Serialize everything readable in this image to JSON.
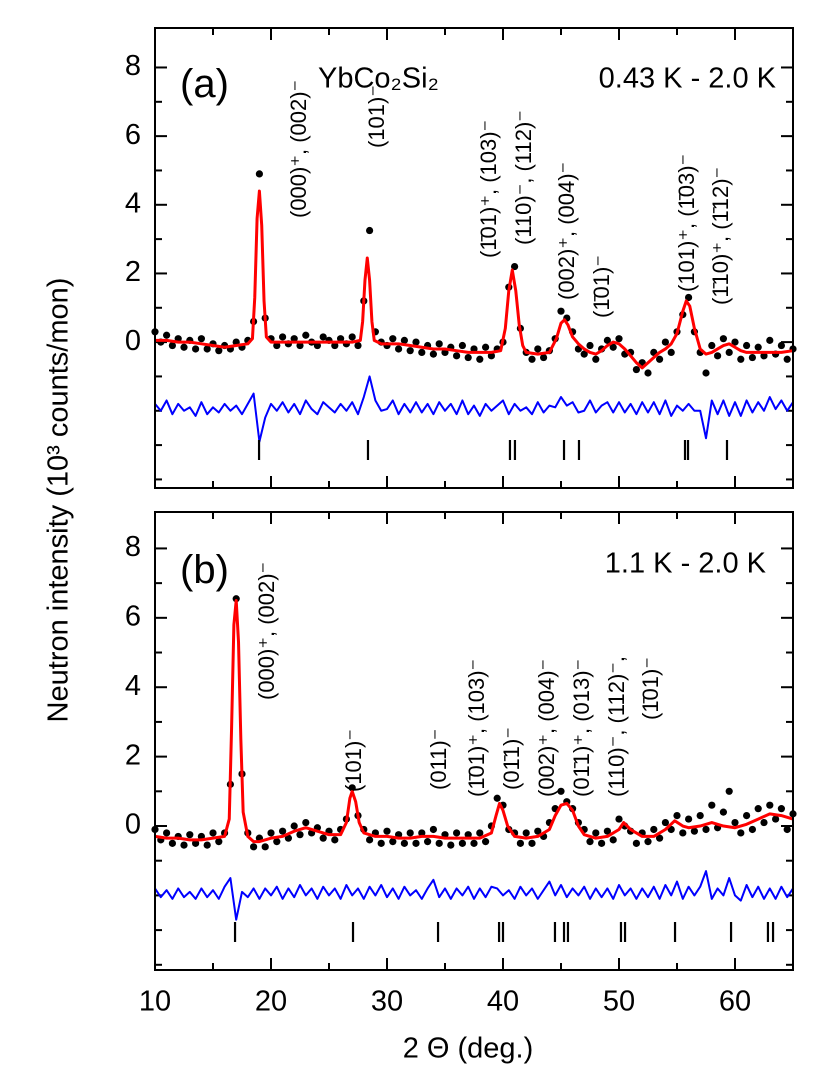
{
  "axis_titles": {
    "x": "2 Θ (deg.)",
    "y": "Neutron intensity (10³ counts/mon)"
  },
  "chart_data": [
    {
      "type": "diffraction",
      "label": "(a)",
      "compound": "YbCo₂Si₂",
      "temperature": "0.43 K - 2.0 K",
      "xlim": [
        10,
        65
      ],
      "xticks": [
        10,
        20,
        30,
        40,
        50,
        60
      ],
      "xminorticks": [
        15,
        25,
        35,
        45,
        55
      ],
      "ylim": [
        -4.25,
        9.15
      ],
      "yticks": [
        0,
        2,
        4,
        6,
        8
      ],
      "yminorticks": [
        -4,
        -3,
        -2,
        -1,
        1,
        3,
        5,
        7
      ],
      "x": [
        10,
        10.5,
        11,
        11.5,
        12,
        12.5,
        13,
        13.5,
        14,
        14.5,
        15,
        15.5,
        16,
        16.5,
        17,
        17.5,
        18,
        18.5,
        19,
        19.5,
        20,
        20.5,
        21,
        21.5,
        22,
        22.5,
        23,
        23.5,
        24,
        24.5,
        25,
        25.5,
        26,
        26.5,
        27,
        27.5,
        28,
        28.5,
        29,
        29.5,
        30,
        30.5,
        31,
        31.5,
        32,
        32.5,
        33,
        33.5,
        34,
        34.5,
        35,
        35.5,
        36,
        36.5,
        37,
        37.5,
        38,
        38.5,
        39,
        39.5,
        40,
        40.5,
        41,
        41.5,
        42,
        42.5,
        43,
        43.5,
        44,
        44.5,
        45,
        45.5,
        46,
        46.5,
        47,
        47.5,
        48,
        48.5,
        49,
        49.5,
        50,
        50.5,
        51,
        51.5,
        52,
        52.5,
        53,
        53.5,
        54,
        54.5,
        55,
        55.5,
        56,
        56.5,
        57,
        57.5,
        58,
        58.5,
        59,
        59.5,
        60,
        60.5,
        61,
        61.5,
        62,
        62.5,
        63,
        63.5,
        64,
        64.5,
        65
      ],
      "observed": {
        "color": "#000000",
        "values": [
          0.3,
          0.0,
          0.2,
          -0.1,
          0.1,
          -0.15,
          0.05,
          -0.2,
          0.1,
          -0.2,
          -0.05,
          -0.25,
          -0.1,
          -0.2,
          0.0,
          -0.15,
          0.05,
          0.6,
          4.9,
          0.7,
          0.1,
          -0.1,
          0.15,
          -0.05,
          0.1,
          -0.1,
          0.2,
          0.0,
          -0.1,
          0.15,
          0.05,
          -0.1,
          0.1,
          -0.05,
          0.15,
          -0.1,
          1.2,
          3.25,
          0.3,
          0.0,
          -0.1,
          0.1,
          -0.2,
          0.05,
          -0.25,
          0.0,
          -0.3,
          -0.1,
          -0.35,
          -0.05,
          -0.3,
          -0.15,
          -0.4,
          -0.1,
          -0.45,
          -0.2,
          -0.5,
          -0.15,
          -0.4,
          -0.2,
          0.0,
          1.6,
          2.2,
          0.4,
          -0.3,
          -0.5,
          -0.2,
          -0.45,
          -0.25,
          0.1,
          0.9,
          0.7,
          0.3,
          -0.2,
          -0.35,
          -0.1,
          -0.5,
          -0.2,
          0.05,
          -0.15,
          0.1,
          -0.35,
          -0.3,
          -0.8,
          -0.6,
          -0.9,
          -0.3,
          -0.5,
          0.0,
          -0.3,
          0.3,
          0.8,
          1.3,
          0.3,
          -0.3,
          -0.9,
          -0.1,
          -0.4,
          0.1,
          -0.3,
          0.0,
          -0.5,
          -0.1,
          -0.45,
          -0.15,
          -0.4,
          0.05,
          -0.35,
          -0.1,
          -0.5,
          -0.2
        ]
      },
      "fit": {
        "color": "#ff0000",
        "x": [
          10,
          11,
          12,
          13,
          14,
          15,
          16,
          17,
          18,
          18.4,
          18.6,
          18.8,
          19,
          19.2,
          19.4,
          19.6,
          20,
          21,
          22,
          23,
          24,
          25,
          26,
          27,
          27.7,
          27.9,
          28.1,
          28.3,
          28.5,
          28.7,
          28.9,
          29.5,
          30,
          31,
          32,
          33,
          34,
          35,
          36,
          37,
          38,
          39,
          39.8,
          40.2,
          40.5,
          40.8,
          41.1,
          41.4,
          41.7,
          42,
          43,
          44,
          44.6,
          45,
          45.3,
          45.6,
          46,
          46.5,
          47,
          47.5,
          48,
          48.5,
          49,
          49.5,
          50,
          50.5,
          51,
          51.5,
          52,
          52.5,
          53,
          53.5,
          54,
          54.5,
          55,
          55.5,
          55.8,
          56.1,
          56.5,
          57,
          57.5,
          58,
          58.5,
          59,
          59.5,
          60,
          60.5,
          61,
          62,
          63,
          64,
          65
        ],
        "values": [
          0.05,
          0.05,
          0,
          0,
          -0.05,
          -0.1,
          -0.15,
          -0.1,
          -0.05,
          0.1,
          1.3,
          3.6,
          4.4,
          3.4,
          1.2,
          0.15,
          0,
          0,
          0,
          0,
          0,
          0,
          0,
          0,
          0.05,
          0.6,
          1.8,
          2.45,
          1.8,
          0.6,
          0.05,
          -0.05,
          -0.05,
          -0.05,
          -0.1,
          -0.15,
          -0.2,
          -0.2,
          -0.25,
          -0.3,
          -0.3,
          -0.3,
          -0.25,
          0.4,
          1.5,
          2.1,
          1.5,
          0.5,
          -0.1,
          -0.3,
          -0.35,
          -0.3,
          0.1,
          0.55,
          0.65,
          0.5,
          0.15,
          -0.05,
          -0.2,
          -0.3,
          -0.35,
          -0.25,
          -0.1,
          0,
          -0.05,
          -0.2,
          -0.4,
          -0.6,
          -0.75,
          -0.6,
          -0.45,
          -0.3,
          -0.2,
          -0.05,
          0.25,
          0.9,
          1.2,
          1.05,
          0.4,
          -0.2,
          -0.35,
          -0.3,
          -0.2,
          -0.1,
          -0.05,
          -0.15,
          -0.25,
          -0.3,
          -0.3,
          -0.3,
          -0.3,
          -0.25
        ]
      },
      "difference": {
        "color": "#0000ff",
        "values": [
          -1.8,
          -2.0,
          -1.7,
          -2.1,
          -1.8,
          -2.0,
          -1.9,
          -2.15,
          -1.75,
          -2.1,
          -1.9,
          -2.05,
          -1.8,
          -2.0,
          -1.85,
          -2.1,
          -1.8,
          -1.5,
          -2.9,
          -2.2,
          -1.8,
          -2.0,
          -1.75,
          -2.05,
          -1.8,
          -2.1,
          -1.7,
          -1.95,
          -2.1,
          -1.75,
          -1.9,
          -2.05,
          -1.8,
          -2.0,
          -1.75,
          -2.1,
          -1.6,
          -1.0,
          -1.7,
          -2.0,
          -1.95,
          -1.7,
          -2.1,
          -1.8,
          -2.05,
          -1.75,
          -2.05,
          -1.8,
          -2.1,
          -1.75,
          -2.0,
          -1.8,
          -2.1,
          -1.7,
          -2.1,
          -1.85,
          -2.15,
          -1.8,
          -2.0,
          -1.85,
          -1.7,
          -2.1,
          -1.8,
          -2.0,
          -1.9,
          -2.1,
          -1.75,
          -2.05,
          -1.85,
          -1.9,
          -1.6,
          -1.85,
          -1.75,
          -2.05,
          -2.0,
          -1.7,
          -2.05,
          -1.85,
          -1.75,
          -2.05,
          -1.75,
          -2.05,
          -1.8,
          -2.1,
          -1.75,
          -2.05,
          -1.75,
          -2.1,
          -1.7,
          -2.15,
          -1.85,
          -2.0,
          -1.8,
          -2.0,
          -2.0,
          -2.8,
          -1.7,
          -2.1,
          -1.7,
          -2.15,
          -1.75,
          -2.15,
          -1.7,
          -2.05,
          -1.75,
          -2.0,
          -1.6,
          -1.95,
          -1.7,
          -2.0,
          -1.75
        ]
      },
      "bragg_positions": [
        18.97,
        28.36,
        40.6,
        41.03,
        45.26,
        46.55,
        55.69,
        55.95,
        59.31
      ],
      "annotations": [
        "(000)⁺, (002)⁻",
        "(101)⁻",
        "(1̄01)⁺, (103)⁻",
        "(110)⁻, (112)⁻",
        "(002)⁺, (004)⁻",
        "(1̄01)⁻",
        "(101)⁺, (1̄03)⁻",
        "(1̄10)⁺, (1̄12)⁻"
      ]
    },
    {
      "type": "diffraction",
      "label": "(b)",
      "temperature": "1.1 K - 2.0 K",
      "xlim": [
        10,
        65
      ],
      "xticks": [
        10,
        20,
        30,
        40,
        50,
        60
      ],
      "xminorticks": [
        15,
        25,
        35,
        45,
        55
      ],
      "ylim": [
        -4.15,
        9.05
      ],
      "yticks": [
        0,
        2,
        4,
        6,
        8
      ],
      "yminorticks": [
        -4,
        -3,
        -2,
        -1,
        1,
        3,
        5,
        7
      ],
      "x": [
        10,
        10.5,
        11,
        11.5,
        12,
        12.5,
        13,
        13.5,
        14,
        14.5,
        15,
        15.5,
        16,
        16.5,
        17,
        17.5,
        18,
        18.5,
        19,
        19.5,
        20,
        20.5,
        21,
        21.5,
        22,
        22.5,
        23,
        23.5,
        24,
        24.5,
        25,
        25.5,
        26,
        26.5,
        27,
        27.5,
        28,
        28.5,
        29,
        29.5,
        30,
        30.5,
        31,
        31.5,
        32,
        32.5,
        33,
        33.5,
        34,
        34.5,
        35,
        35.5,
        36,
        36.5,
        37,
        37.5,
        38,
        38.5,
        39,
        39.5,
        40,
        40.5,
        41,
        41.5,
        42,
        42.5,
        43,
        43.5,
        44,
        44.5,
        45,
        45.5,
        46,
        46.5,
        47,
        47.5,
        48,
        48.5,
        49,
        49.5,
        50,
        50.5,
        51,
        51.5,
        52,
        52.5,
        53,
        53.5,
        54,
        54.5,
        55,
        55.5,
        56,
        56.5,
        57,
        57.5,
        58,
        58.5,
        59,
        59.5,
        60,
        60.5,
        61,
        61.5,
        62,
        62.5,
        63,
        63.5,
        64,
        64.5,
        65
      ],
      "observed": {
        "color": "#000000",
        "values": [
          -0.1,
          -0.4,
          -0.2,
          -0.5,
          -0.3,
          -0.55,
          -0.25,
          -0.5,
          -0.3,
          -0.55,
          -0.2,
          -0.45,
          -0.2,
          1.2,
          6.55,
          1.5,
          -0.2,
          -0.6,
          -0.35,
          -0.6,
          -0.2,
          -0.45,
          -0.15,
          -0.35,
          0.0,
          -0.25,
          0.1,
          -0.2,
          -0.05,
          -0.35,
          -0.15,
          -0.4,
          -0.1,
          0.2,
          1.1,
          0.3,
          -0.1,
          -0.4,
          -0.2,
          -0.5,
          -0.15,
          -0.45,
          -0.25,
          -0.5,
          -0.2,
          -0.5,
          -0.2,
          -0.45,
          -0.1,
          -0.5,
          -0.25,
          -0.55,
          -0.2,
          -0.5,
          -0.25,
          -0.5,
          -0.2,
          -0.45,
          0.0,
          0.8,
          0.6,
          -0.1,
          -0.2,
          -0.5,
          -0.2,
          -0.5,
          -0.15,
          -0.3,
          0.1,
          0.5,
          1.0,
          0.7,
          0.5,
          0.1,
          -0.1,
          -0.45,
          -0.2,
          -0.5,
          -0.15,
          -0.4,
          0.2,
          0.0,
          -0.15,
          -0.5,
          -0.2,
          -0.45,
          -0.1,
          -0.35,
          0.1,
          -0.1,
          0.3,
          -0.2,
          0.2,
          -0.15,
          0.3,
          -0.1,
          0.6,
          -0.05,
          0.4,
          1.0,
          0.1,
          -0.2,
          0.3,
          -0.1,
          0.5,
          0.1,
          0.6,
          0.2,
          0.5,
          -0.1,
          0.35
        ]
      },
      "fit": {
        "color": "#ff0000",
        "x": [
          10,
          11,
          12,
          13,
          14,
          15,
          16,
          16.4,
          16.6,
          16.8,
          17,
          17.2,
          17.4,
          17.6,
          18,
          18.5,
          19,
          20,
          21,
          22,
          23,
          24,
          25,
          26,
          26.5,
          26.8,
          27,
          27.3,
          27.6,
          28,
          29,
          30,
          31,
          32,
          33,
          34,
          35,
          36,
          37,
          38,
          39,
          39.4,
          39.7,
          40,
          40.4,
          41,
          42,
          43,
          44,
          44.5,
          45,
          45.5,
          46,
          46.5,
          47,
          48,
          49,
          50,
          50.4,
          51,
          52,
          53,
          54,
          54.8,
          55.5,
          56,
          57,
          58,
          59,
          60,
          61,
          62,
          63,
          64,
          65
        ],
        "values": [
          -0.3,
          -0.35,
          -0.35,
          -0.4,
          -0.4,
          -0.35,
          -0.3,
          0.2,
          2.8,
          5.8,
          6.5,
          5.3,
          2.5,
          0.4,
          -0.3,
          -0.45,
          -0.45,
          -0.35,
          -0.3,
          -0.15,
          -0.05,
          -0.15,
          -0.25,
          -0.25,
          0.1,
          0.8,
          1,
          0.7,
          0.1,
          -0.2,
          -0.3,
          -0.3,
          -0.35,
          -0.35,
          -0.3,
          -0.3,
          -0.35,
          -0.35,
          -0.35,
          -0.35,
          -0.2,
          0.3,
          0.65,
          0.45,
          0,
          -0.3,
          -0.35,
          -0.3,
          -0.1,
          0.3,
          0.6,
          0.65,
          0.45,
          0,
          -0.25,
          -0.35,
          -0.3,
          -0.1,
          0.1,
          -0.1,
          -0.3,
          -0.3,
          -0.1,
          0.15,
          0,
          -0.05,
          0,
          0.1,
          0,
          -0.05,
          0.05,
          0.2,
          0.35,
          0.3,
          0.2
        ]
      },
      "difference": {
        "color": "#0000ff",
        "values": [
          -1.8,
          -2.05,
          -1.85,
          -2.1,
          -1.8,
          -2.05,
          -1.9,
          -2.1,
          -1.8,
          -2.05,
          -1.85,
          -2.1,
          -1.75,
          -1.5,
          -2.7,
          -1.9,
          -2.05,
          -1.8,
          -2.1,
          -1.8,
          -2.0,
          -1.75,
          -2.1,
          -1.8,
          -2.05,
          -1.7,
          -2.0,
          -1.8,
          -2.1,
          -1.75,
          -2.0,
          -1.8,
          -2.1,
          -1.7,
          -2.0,
          -1.8,
          -2.1,
          -1.75,
          -2.0,
          -1.7,
          -2.05,
          -1.8,
          -2.1,
          -1.75,
          -2.0,
          -1.85,
          -2.1,
          -1.8,
          -1.55,
          -2.05,
          -1.8,
          -2.1,
          -1.8,
          -2.0,
          -1.75,
          -2.1,
          -1.8,
          -2.05,
          -1.75,
          -1.8,
          -2.0,
          -1.85,
          -2.1,
          -1.75,
          -2.0,
          -1.8,
          -2.1,
          -1.85,
          -1.6,
          -2.0,
          -1.7,
          -2.05,
          -1.8,
          -2.0,
          -1.75,
          -2.1,
          -1.8,
          -2.05,
          -1.8,
          -2.1,
          -1.7,
          -2.0,
          -1.8,
          -2.1,
          -1.8,
          -2.05,
          -1.75,
          -2.1,
          -1.7,
          -2.0,
          -1.6,
          -2.1,
          -1.75,
          -2.0,
          -1.75,
          -1.3,
          -2.1,
          -1.8,
          -2.0,
          -1.5,
          -2.0,
          -2.15,
          -1.7,
          -2.05,
          -1.75,
          -2.1,
          -1.8,
          -2.1,
          -1.75,
          -2.05,
          -1.8
        ]
      },
      "bragg_positions": [
        16.9,
        27.07,
        34.4,
        39.66,
        40.0,
        44.48,
        45.26,
        45.6,
        50.17,
        50.52,
        54.83,
        59.66,
        62.84,
        63.28
      ],
      "annotations": [
        "(000)⁺, (002)⁻",
        "(101)⁻",
        "(011)⁻",
        "(1̄01)⁺, (103)⁻",
        "(01̄1)⁻",
        "(002)⁺, (004)⁻",
        "(01̄1)⁺, (013)⁻",
        "(110)⁻, (112)⁻,",
        "(1̄01)⁻"
      ]
    }
  ]
}
